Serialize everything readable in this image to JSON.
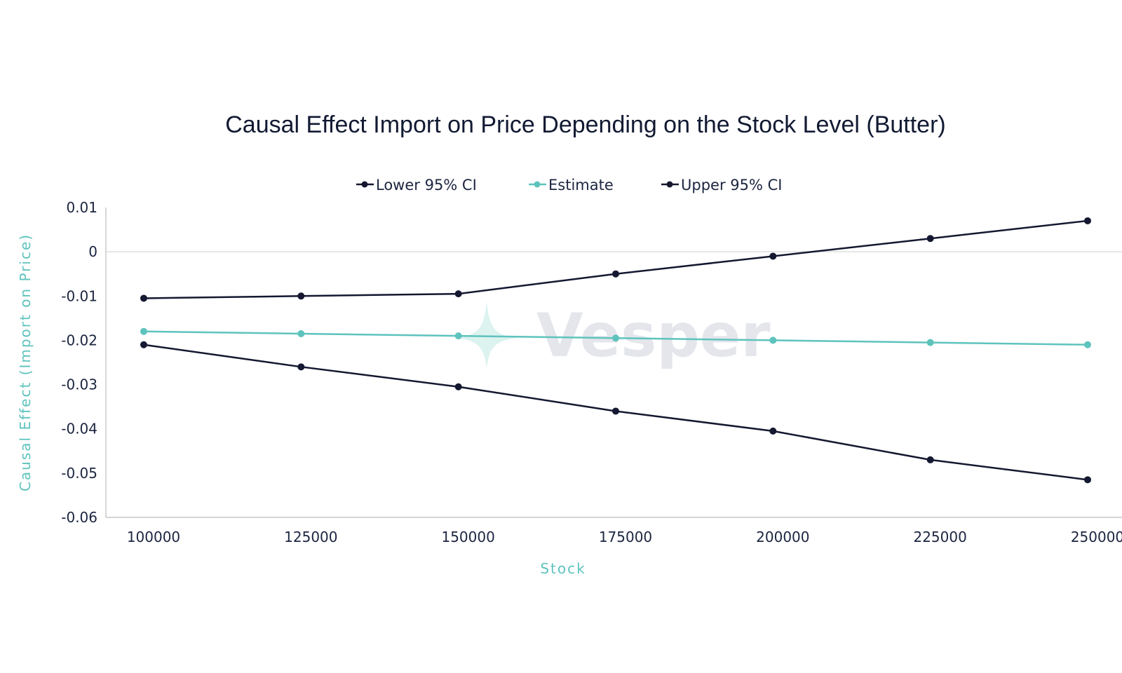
{
  "watermark": {
    "text": "Vesper"
  },
  "colors": {
    "dark_series": "#141830",
    "estimate_series": "#5ec3bd",
    "axis_title": "#5ec3bd",
    "axis_line": "#c8c8c8",
    "zero_line": "#dedede"
  },
  "chart_data": {
    "type": "line",
    "title": "Causal Effect Import on Price Depending on the Stock Level (Butter)",
    "xlabel": "Stock",
    "ylabel": "Causal Effect (Import on Price)",
    "categories": [
      "100000",
      "125000",
      "150000",
      "175000",
      "200000",
      "225000",
      "250000"
    ],
    "ylim": [
      -0.06,
      0.01
    ],
    "yticks": [
      0.01,
      0,
      -0.01,
      -0.02,
      -0.03,
      -0.04,
      -0.05,
      -0.06
    ],
    "ytick_labels": [
      "0.01",
      "0",
      "-0.01",
      "-0.02",
      "-0.03",
      "-0.04",
      "-0.05",
      "-0.06"
    ],
    "legend_position": "top-center",
    "grid": false,
    "series": [
      {
        "name": "Lower 95% CI",
        "color": "#141830",
        "values": [
          -0.021,
          -0.026,
          -0.0305,
          -0.036,
          -0.0405,
          -0.047,
          -0.0515
        ]
      },
      {
        "name": "Estimate",
        "color": "#5ec3bd",
        "values": [
          -0.018,
          -0.0185,
          -0.019,
          -0.0195,
          -0.02,
          -0.0205,
          -0.021
        ]
      },
      {
        "name": "Upper 95% CI",
        "color": "#141830",
        "values": [
          -0.0105,
          -0.01,
          -0.0095,
          -0.005,
          -0.001,
          0.003,
          0.007
        ]
      }
    ]
  }
}
